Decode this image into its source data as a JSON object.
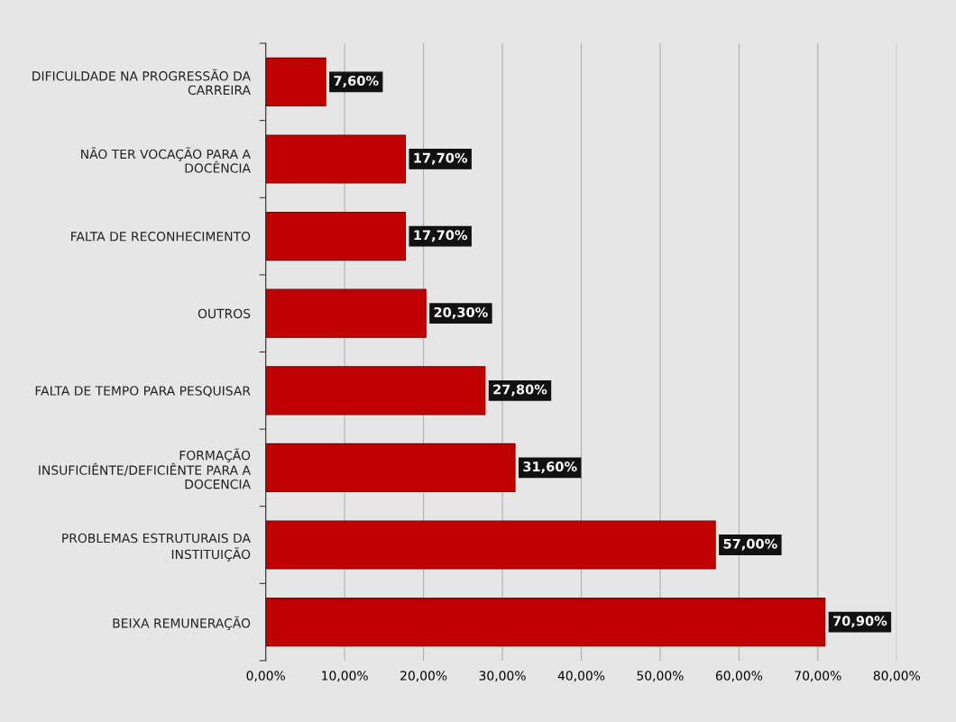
{
  "chart_data": {
    "type": "bar",
    "orientation": "horizontal",
    "categories": [
      "DIFICULDADE NA PROGRESSÃO DA\nCARREIRA",
      "NÃO TER VOCAÇÃO PARA A\nDOCÊNCIA",
      "FALTA DE RECONHECIMENTO",
      "OUTROS",
      "FALTA DE TEMPO PARA PESQUISAR",
      "FORMAÇÃO\nINSUFICIÊNTE/DEFICIÊNTE PARA A\nDOCENCIA",
      "PROBLEMAS ESTRUTURAIS DA\nINSTITUIÇÃO",
      "BEIXA REMUNERAÇÃO"
    ],
    "values": [
      7.6,
      17.7,
      17.7,
      20.3,
      27.8,
      31.6,
      57.0,
      70.9
    ],
    "value_labels": [
      "7,60%",
      "17,70%",
      "17,70%",
      "20,30%",
      "27,80%",
      "31,60%",
      "57,00%",
      "70,90%"
    ],
    "color": "#c00000",
    "xlim": [
      0,
      80
    ],
    "xticks": [
      {
        "value": 0,
        "label": "0,00%"
      },
      {
        "value": 10,
        "label": "10,00%"
      },
      {
        "value": 20,
        "label": "20,00%"
      },
      {
        "value": 30,
        "label": "30,00%"
      },
      {
        "value": 40,
        "label": "40,00%"
      },
      {
        "value": 50,
        "label": "50,00%"
      },
      {
        "value": 60,
        "label": "60,00%"
      },
      {
        "value": 70,
        "label": "70,00%"
      },
      {
        "value": 80,
        "label": "80,00%"
      }
    ],
    "grid": "x",
    "legend": false
  }
}
